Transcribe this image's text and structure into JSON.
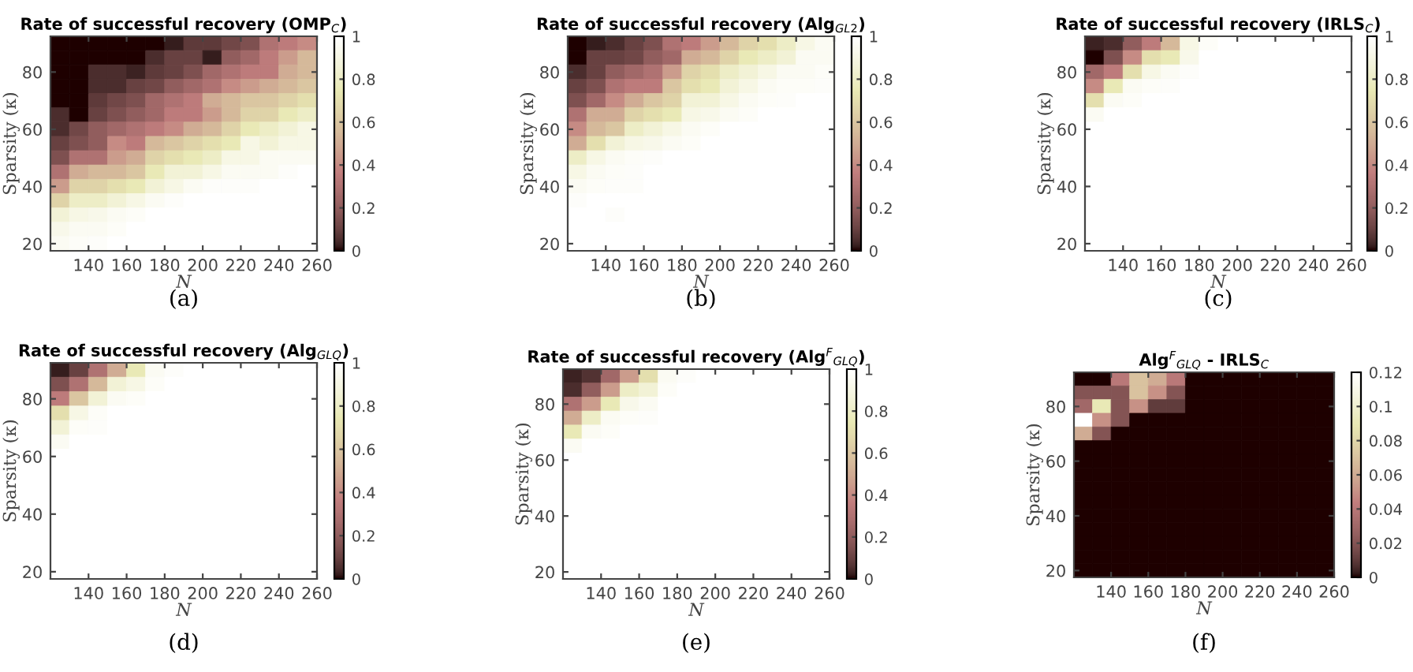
{
  "chart_data": [
    {
      "type": "heatmap",
      "title": "Rate of successful recovery (OMP$_{C}$)",
      "xlabel": "N",
      "ylabel": "Sparsity (κ)",
      "annotations": [
        "(a)"
      ],
      "x": [
        125,
        135,
        145,
        155,
        165,
        175,
        185,
        195,
        205,
        215,
        225,
        235,
        245,
        255
      ],
      "y": [
        90,
        85,
        80,
        75,
        70,
        65,
        60,
        55,
        50,
        45,
        40,
        35,
        30,
        25,
        20
      ],
      "xlim": [
        120,
        260
      ],
      "ylim": [
        17.5,
        92.5
      ],
      "xticks": [
        140,
        160,
        180,
        200,
        220,
        240,
        260
      ],
      "yticks": [
        20,
        40,
        60,
        80
      ],
      "clim": [
        0,
        1
      ],
      "cticks": [
        0,
        0.2,
        0.4,
        0.6,
        0.8,
        1
      ],
      "cells": [
        [
          0,
          0,
          0,
          0,
          0,
          0,
          0.02,
          0.08,
          0.08,
          0.12,
          0.15,
          0.3,
          0.35,
          0.4
        ],
        [
          0,
          0,
          0,
          0,
          0,
          0.05,
          0.1,
          0.1,
          0.02,
          0.2,
          0.25,
          0.35,
          0.45,
          0.55
        ],
        [
          0,
          0,
          0.05,
          0.05,
          0.03,
          0.08,
          0.1,
          0.15,
          0.25,
          0.3,
          0.35,
          0.35,
          0.5,
          0.55
        ],
        [
          0,
          0,
          0.05,
          0.05,
          0.1,
          0.12,
          0.2,
          0.25,
          0.3,
          0.4,
          0.45,
          0.5,
          0.55,
          0.6
        ],
        [
          0,
          0,
          0.08,
          0.12,
          0.15,
          0.25,
          0.3,
          0.35,
          0.5,
          0.55,
          0.6,
          0.6,
          0.65,
          0.7
        ],
        [
          0.05,
          0,
          0.1,
          0.15,
          0.2,
          0.25,
          0.35,
          0.35,
          0.45,
          0.55,
          0.65,
          0.65,
          0.75,
          0.8
        ],
        [
          0.05,
          0.12,
          0.2,
          0.25,
          0.3,
          0.35,
          0.4,
          0.5,
          0.55,
          0.65,
          0.75,
          0.8,
          0.85,
          0.9
        ],
        [
          0.1,
          0.15,
          0.2,
          0.4,
          0.35,
          0.55,
          0.6,
          0.65,
          0.7,
          0.75,
          0.9,
          0.85,
          0.9,
          0.9
        ],
        [
          0.15,
          0.3,
          0.3,
          0.45,
          0.5,
          0.65,
          0.7,
          0.75,
          0.8,
          0.9,
          0.9,
          0.95,
          0.95,
          0.95
        ],
        [
          0.3,
          0.5,
          0.55,
          0.55,
          0.6,
          0.75,
          0.85,
          0.85,
          0.9,
          0.95,
          0.95,
          0.95,
          0.98,
          1
        ],
        [
          0.45,
          0.65,
          0.65,
          0.7,
          0.75,
          0.85,
          0.9,
          0.95,
          0.98,
          0.98,
          0.98,
          1,
          1,
          1
        ],
        [
          0.65,
          0.8,
          0.8,
          0.85,
          0.9,
          0.95,
          0.98,
          1,
          1,
          1,
          1,
          1,
          1,
          1
        ],
        [
          0.85,
          0.9,
          0.92,
          0.95,
          0.97,
          1,
          1,
          1,
          1,
          1,
          1,
          1,
          1,
          1
        ],
        [
          0.92,
          0.95,
          0.95,
          0.97,
          1,
          1,
          1,
          1,
          1,
          1,
          1,
          1,
          1,
          1
        ],
        [
          0.95,
          0.97,
          0.98,
          1,
          1,
          1,
          1,
          1,
          1,
          1,
          1,
          1,
          1,
          1
        ]
      ]
    },
    {
      "type": "heatmap",
      "title": "Rate of successful recovery (Alg$_{GL2}$)",
      "xlabel": "N",
      "ylabel": "Sparsity (κ)",
      "annotations": [
        "(b)"
      ],
      "x": [
        125,
        135,
        145,
        155,
        165,
        175,
        185,
        195,
        205,
        215,
        225,
        235,
        245,
        255
      ],
      "y": [
        90,
        85,
        80,
        75,
        70,
        65,
        60,
        55,
        50,
        45,
        40,
        35,
        30,
        25,
        20
      ],
      "xlim": [
        120,
        260
      ],
      "ylim": [
        17.5,
        92.5
      ],
      "xticks": [
        140,
        160,
        180,
        200,
        220,
        240,
        260
      ],
      "yticks": [
        20,
        40,
        60,
        80
      ],
      "clim": [
        0,
        1
      ],
      "cticks": [
        0,
        0.2,
        0.4,
        0.6,
        0.8,
        1
      ],
      "cells": [
        [
          0,
          0.02,
          0.05,
          0.1,
          0.15,
          0.3,
          0.35,
          0.45,
          0.55,
          0.65,
          0.7,
          0.8,
          0.9,
          0.95
        ],
        [
          0,
          0.1,
          0.1,
          0.12,
          0.2,
          0.25,
          0.5,
          0.55,
          0.65,
          0.75,
          0.8,
          0.85,
          0.95,
          0.95
        ],
        [
          0.05,
          0.1,
          0.2,
          0.25,
          0.3,
          0.45,
          0.65,
          0.7,
          0.8,
          0.85,
          0.9,
          0.95,
          0.95,
          0.97
        ],
        [
          0.1,
          0.15,
          0.3,
          0.35,
          0.35,
          0.6,
          0.7,
          0.75,
          0.85,
          0.9,
          0.95,
          0.97,
          0.97,
          0.98
        ],
        [
          0.15,
          0.25,
          0.4,
          0.5,
          0.6,
          0.65,
          0.85,
          0.85,
          0.9,
          0.95,
          0.97,
          0.98,
          1,
          1
        ],
        [
          0.3,
          0.5,
          0.5,
          0.65,
          0.7,
          0.75,
          0.9,
          0.92,
          0.95,
          0.97,
          1,
          1,
          1,
          1
        ],
        [
          0.4,
          0.55,
          0.6,
          0.8,
          0.85,
          0.9,
          0.95,
          0.97,
          1,
          1,
          1,
          1,
          1,
          1
        ],
        [
          0.5,
          0.7,
          0.85,
          0.9,
          0.92,
          0.95,
          0.97,
          1,
          1,
          1,
          1,
          1,
          1,
          1
        ],
        [
          0.8,
          0.9,
          0.95,
          0.97,
          0.98,
          1,
          1,
          1,
          1,
          1,
          1,
          1,
          1,
          1
        ],
        [
          0.9,
          0.95,
          0.97,
          0.98,
          1,
          1,
          1,
          1,
          1,
          1,
          1,
          1,
          1,
          1
        ],
        [
          0.95,
          0.97,
          0.98,
          0.98,
          1,
          1,
          1,
          1,
          1,
          1,
          1,
          1,
          1,
          1
        ],
        [
          0.98,
          1,
          1,
          1,
          1,
          1,
          1,
          1,
          1,
          1,
          1,
          1,
          1,
          1
        ],
        [
          1,
          1,
          0.98,
          1,
          1,
          1,
          1,
          1,
          1,
          1,
          1,
          1,
          1,
          1
        ],
        [
          1,
          1,
          1,
          1,
          1,
          1,
          1,
          1,
          1,
          1,
          1,
          1,
          1,
          1
        ],
        [
          1,
          1,
          1,
          1,
          1,
          1,
          1,
          1,
          1,
          1,
          1,
          1,
          1,
          1
        ]
      ]
    },
    {
      "type": "heatmap",
      "title": "Rate of successful recovery (IRLS$_{C}$)",
      "xlabel": "N",
      "ylabel": "Sparsity (κ)",
      "annotations": [
        "(c)"
      ],
      "x": [
        125,
        135,
        145,
        155,
        165,
        175,
        185,
        195,
        205,
        215,
        225,
        235,
        245,
        255
      ],
      "y": [
        90,
        85,
        80,
        75,
        70,
        65,
        60,
        55,
        50,
        45,
        40,
        35,
        30,
        25,
        20
      ],
      "xlim": [
        120,
        260
      ],
      "ylim": [
        17.5,
        92.5
      ],
      "xticks": [
        140,
        160,
        180,
        200,
        220,
        240,
        260
      ],
      "yticks": [
        20,
        40,
        60,
        80
      ],
      "clim": [
        0,
        1
      ],
      "cticks": [
        0,
        0.2,
        0.4,
        0.6,
        0.8,
        1
      ],
      "cells": [
        [
          0.03,
          0.05,
          0.2,
          0.35,
          0.55,
          0.9,
          0.97,
          1,
          1,
          1,
          1,
          1,
          1,
          1
        ],
        [
          0,
          0.15,
          0.4,
          0.7,
          0.75,
          0.92,
          1,
          1,
          1,
          1,
          1,
          1,
          1,
          1
        ],
        [
          0.25,
          0.35,
          0.7,
          0.9,
          0.95,
          0.98,
          1,
          1,
          1,
          1,
          1,
          1,
          1,
          1
        ],
        [
          0.4,
          0.75,
          0.95,
          0.97,
          0.98,
          1,
          1,
          1,
          1,
          1,
          1,
          1,
          1,
          1
        ],
        [
          0.7,
          0.95,
          0.97,
          1,
          1,
          1,
          1,
          1,
          1,
          1,
          1,
          1,
          1,
          1
        ],
        [
          0.95,
          1,
          1,
          1,
          1,
          1,
          1,
          1,
          1,
          1,
          1,
          1,
          1,
          1
        ],
        [
          1,
          1,
          1,
          1,
          1,
          1,
          1,
          1,
          1,
          1,
          1,
          1,
          1,
          1
        ],
        [
          1,
          1,
          1,
          1,
          1,
          1,
          1,
          1,
          1,
          1,
          1,
          1,
          1,
          1
        ],
        [
          1,
          1,
          1,
          1,
          1,
          1,
          1,
          1,
          1,
          1,
          1,
          1,
          1,
          1
        ],
        [
          1,
          1,
          1,
          1,
          1,
          1,
          1,
          1,
          1,
          1,
          1,
          1,
          1,
          1
        ],
        [
          1,
          1,
          1,
          1,
          1,
          1,
          1,
          1,
          1,
          1,
          1,
          1,
          1,
          1
        ],
        [
          1,
          1,
          1,
          1,
          1,
          1,
          1,
          1,
          1,
          1,
          1,
          1,
          1,
          1
        ],
        [
          1,
          1,
          1,
          1,
          1,
          1,
          1,
          1,
          1,
          1,
          1,
          1,
          1,
          1
        ],
        [
          1,
          1,
          1,
          1,
          1,
          1,
          1,
          1,
          1,
          1,
          1,
          1,
          1,
          1
        ],
        [
          1,
          1,
          1,
          1,
          1,
          1,
          1,
          1,
          1,
          1,
          1,
          1,
          1,
          1
        ]
      ]
    },
    {
      "type": "heatmap",
      "title": "Rate of successful recovery (Alg$_{GLQ}$)",
      "xlabel": "N",
      "ylabel": "Sparsity (κ)",
      "annotations": [
        "(d)"
      ],
      "x": [
        125,
        135,
        145,
        155,
        165,
        175,
        185,
        195,
        205,
        215,
        225,
        235,
        245,
        255
      ],
      "y": [
        90,
        85,
        80,
        75,
        70,
        65,
        60,
        55,
        50,
        45,
        40,
        35,
        30,
        25,
        20
      ],
      "xlim": [
        120,
        260
      ],
      "ylim": [
        17.5,
        92.5
      ],
      "xticks": [
        140,
        160,
        180,
        200,
        220,
        240,
        260
      ],
      "yticks": [
        20,
        40,
        60,
        80
      ],
      "clim": [
        0,
        1
      ],
      "cticks": [
        0,
        0.2,
        0.4,
        0.6,
        0.8,
        1
      ],
      "cells": [
        [
          0.02,
          0.1,
          0.3,
          0.5,
          0.75,
          0.95,
          0.98,
          1,
          1,
          1,
          1,
          1,
          1,
          1
        ],
        [
          0.15,
          0.3,
          0.55,
          0.85,
          0.9,
          0.97,
          1,
          1,
          1,
          1,
          1,
          1,
          1,
          1
        ],
        [
          0.35,
          0.6,
          0.85,
          0.95,
          0.97,
          1,
          1,
          1,
          1,
          1,
          1,
          1,
          1,
          1
        ],
        [
          0.7,
          0.9,
          0.97,
          1,
          1,
          1,
          1,
          1,
          1,
          1,
          1,
          1,
          1,
          1
        ],
        [
          0.85,
          0.97,
          0.98,
          1,
          1,
          1,
          1,
          1,
          1,
          1,
          1,
          1,
          1,
          1
        ],
        [
          0.95,
          1,
          1,
          1,
          1,
          1,
          1,
          1,
          1,
          1,
          1,
          1,
          1,
          1
        ],
        [
          1,
          1,
          1,
          1,
          1,
          1,
          1,
          1,
          1,
          1,
          1,
          1,
          1,
          1
        ],
        [
          1,
          1,
          1,
          1,
          1,
          1,
          1,
          1,
          1,
          1,
          1,
          1,
          1,
          1
        ],
        [
          1,
          1,
          1,
          1,
          1,
          1,
          1,
          1,
          1,
          1,
          1,
          1,
          1,
          1
        ],
        [
          1,
          1,
          1,
          1,
          1,
          1,
          1,
          1,
          1,
          1,
          1,
          1,
          1,
          1
        ],
        [
          1,
          1,
          1,
          1,
          1,
          1,
          1,
          1,
          1,
          1,
          1,
          1,
          1,
          1
        ],
        [
          1,
          1,
          1,
          1,
          1,
          1,
          1,
          1,
          1,
          1,
          1,
          1,
          1,
          1
        ],
        [
          1,
          1,
          1,
          1,
          1,
          1,
          1,
          1,
          1,
          1,
          1,
          1,
          1,
          1
        ],
        [
          1,
          1,
          1,
          1,
          1,
          1,
          1,
          1,
          1,
          1,
          1,
          1,
          1,
          1
        ],
        [
          1,
          1,
          1,
          1,
          1,
          1,
          1,
          1,
          1,
          1,
          1,
          1,
          1,
          1
        ]
      ]
    },
    {
      "type": "heatmap",
      "title": "Rate of successful recovery (Alg$^{F}$$_{GLQ}$)",
      "xlabel": "N",
      "ylabel": "Sparsity (κ)",
      "annotations": [
        "(e)"
      ],
      "x": [
        125,
        135,
        145,
        155,
        165,
        175,
        185,
        195,
        205,
        215,
        225,
        235,
        245,
        255
      ],
      "y": [
        90,
        85,
        80,
        75,
        70,
        65,
        60,
        55,
        50,
        45,
        40,
        35,
        30,
        25,
        20
      ],
      "xlim": [
        120,
        260
      ],
      "ylim": [
        17.5,
        92.5
      ],
      "xticks": [
        140,
        160,
        180,
        200,
        220,
        240,
        260
      ],
      "yticks": [
        20,
        40,
        60,
        80
      ],
      "clim": [
        0,
        1
      ],
      "cticks": [
        0,
        0.2,
        0.4,
        0.6,
        0.8,
        1
      ],
      "cells": [
        [
          0.03,
          0.06,
          0.25,
          0.45,
          0.7,
          0.95,
          0.98,
          1,
          1,
          1,
          1,
          1,
          1,
          1
        ],
        [
          0.05,
          0.2,
          0.45,
          0.8,
          0.85,
          0.97,
          1,
          1,
          1,
          1,
          1,
          1,
          1,
          1
        ],
        [
          0.3,
          0.45,
          0.75,
          0.92,
          0.95,
          1,
          1,
          1,
          1,
          1,
          1,
          1,
          1,
          1
        ],
        [
          0.5,
          0.8,
          0.95,
          0.97,
          0.98,
          1,
          1,
          1,
          1,
          1,
          1,
          1,
          1,
          1
        ],
        [
          0.75,
          0.95,
          0.97,
          1,
          1,
          1,
          1,
          1,
          1,
          1,
          1,
          1,
          1,
          1
        ],
        [
          0.95,
          1,
          1,
          1,
          1,
          1,
          1,
          1,
          1,
          1,
          1,
          1,
          1,
          1
        ],
        [
          1,
          1,
          1,
          1,
          1,
          1,
          1,
          1,
          1,
          1,
          1,
          1,
          1,
          1
        ],
        [
          1,
          1,
          1,
          1,
          1,
          1,
          1,
          1,
          1,
          1,
          1,
          1,
          1,
          1
        ],
        [
          1,
          1,
          1,
          1,
          1,
          1,
          1,
          1,
          1,
          1,
          1,
          1,
          1,
          1
        ],
        [
          1,
          1,
          1,
          1,
          1,
          1,
          1,
          1,
          1,
          1,
          1,
          1,
          1,
          1
        ],
        [
          1,
          1,
          1,
          1,
          1,
          1,
          1,
          1,
          1,
          1,
          1,
          1,
          1,
          1
        ],
        [
          1,
          1,
          1,
          1,
          1,
          1,
          1,
          1,
          1,
          1,
          1,
          1,
          1,
          1
        ],
        [
          1,
          1,
          1,
          1,
          1,
          1,
          1,
          1,
          1,
          1,
          1,
          1,
          1,
          1
        ],
        [
          1,
          1,
          1,
          1,
          1,
          1,
          1,
          1,
          1,
          1,
          1,
          1,
          1,
          1
        ],
        [
          1,
          1,
          1,
          1,
          1,
          1,
          1,
          1,
          1,
          1,
          1,
          1,
          1,
          1
        ]
      ]
    },
    {
      "type": "heatmap",
      "title": "Alg$^{F}$$_{GLQ}$ - IRLS$_{C}$",
      "xlabel": "N",
      "ylabel": "Sparsity (κ)",
      "annotations": [
        "(f)"
      ],
      "x": [
        125,
        135,
        145,
        155,
        165,
        175,
        185,
        195,
        205,
        215,
        225,
        235,
        245,
        255
      ],
      "y": [
        90,
        85,
        80,
        75,
        70,
        65,
        60,
        55,
        50,
        45,
        40,
        35,
        30,
        25,
        20
      ],
      "xlim": [
        120,
        260
      ],
      "ylim": [
        17.5,
        92.5
      ],
      "xticks": [
        140,
        160,
        180,
        200,
        220,
        240,
        260
      ],
      "yticks": [
        20,
        40,
        60,
        80
      ],
      "clim": [
        0,
        0.12
      ],
      "cticks": [
        0,
        0.02,
        0.04,
        0.06,
        0.08,
        0.1,
        0.12
      ],
      "cells": [
        [
          0,
          0,
          0.04,
          0.07,
          0.06,
          0.04,
          0,
          0,
          0,
          0,
          0,
          0,
          0,
          0
        ],
        [
          0.02,
          0.02,
          0.02,
          0.07,
          0.05,
          0.02,
          0,
          0,
          0,
          0,
          0,
          0,
          0,
          0
        ],
        [
          0.03,
          0.09,
          0.02,
          0.05,
          0.01,
          0.01,
          0,
          0,
          0,
          0,
          0,
          0,
          0,
          0
        ],
        [
          0.12,
          0.05,
          0.02,
          0,
          0,
          0,
          0,
          0,
          0,
          0,
          0,
          0,
          0,
          0
        ],
        [
          0.06,
          0.02,
          0,
          0,
          0,
          0,
          0,
          0,
          0,
          0,
          0,
          0,
          0,
          0
        ],
        [
          0,
          0,
          0,
          0,
          0,
          0,
          0,
          0,
          0,
          0,
          0,
          0,
          0,
          0
        ],
        [
          0,
          0,
          0,
          0,
          0,
          0,
          0,
          0,
          0,
          0,
          0,
          0,
          0,
          0
        ],
        [
          0,
          0,
          0,
          0,
          0,
          0,
          0,
          0,
          0,
          0,
          0,
          0,
          0,
          0
        ],
        [
          0,
          0,
          0,
          0,
          0,
          0,
          0,
          0,
          0,
          0,
          0,
          0,
          0,
          0
        ],
        [
          0,
          0,
          0,
          0,
          0,
          0,
          0,
          0,
          0,
          0,
          0,
          0,
          0,
          0
        ],
        [
          0,
          0,
          0,
          0,
          0,
          0,
          0,
          0,
          0,
          0,
          0,
          0,
          0,
          0
        ],
        [
          0,
          0,
          0,
          0,
          0,
          0,
          0,
          0,
          0,
          0,
          0,
          0,
          0,
          0
        ],
        [
          0,
          0,
          0,
          0,
          0,
          0,
          0,
          0,
          0,
          0,
          0,
          0,
          0,
          0
        ],
        [
          0,
          0,
          0,
          0,
          0,
          0,
          0,
          0,
          0,
          0,
          0,
          0,
          0,
          0
        ],
        [
          0,
          0,
          0,
          0,
          0,
          0,
          0,
          0,
          0,
          0,
          0,
          0,
          0,
          0
        ]
      ]
    }
  ]
}
